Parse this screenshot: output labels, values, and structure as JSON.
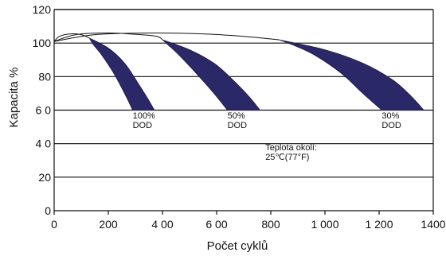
{
  "chart_data": {
    "type": "area",
    "xlabel": "Počet cyklů",
    "ylabel": "Kapacita  %",
    "xlim": [
      0,
      1400
    ],
    "ylim": [
      0,
      120
    ],
    "x_ticks": [
      0,
      200,
      400,
      600,
      800,
      1000,
      1200,
      1400
    ],
    "x_tick_labels": [
      "0",
      "200",
      "4 00",
      "6 00",
      "800",
      "1 000",
      "1 200",
      "1400"
    ],
    "y_ticks": [
      0,
      20,
      40,
      60,
      80,
      100,
      120
    ],
    "y_tick_labels": [
      "0",
      "20",
      "4 0",
      "6 0",
      "80",
      "100",
      "120"
    ],
    "grid": "horizontal",
    "fill_color": "#2b2868",
    "line_color": "#111111",
    "series": [
      {
        "label_lines": [
          "100%",
          "DOD"
        ],
        "label_x": 290,
        "label_y": 55,
        "curve": [
          [
            0,
            101
          ],
          [
            20,
            104
          ],
          [
            60,
            105.5
          ],
          [
            100,
            105
          ],
          [
            130,
            103
          ]
        ],
        "band_upper": [
          [
            130,
            103
          ],
          [
            200,
            97
          ],
          [
            260,
            88
          ],
          [
            310,
            76
          ],
          [
            345,
            67
          ],
          [
            370,
            60
          ]
        ],
        "band_lower": [
          [
            290,
            60
          ],
          [
            260,
            70
          ],
          [
            220,
            82
          ],
          [
            175,
            93
          ],
          [
            145,
            99
          ],
          [
            130,
            103
          ]
        ],
        "end_range": [
          290,
          370
        ]
      },
      {
        "label_lines": [
          "50%",
          "DOD"
        ],
        "label_x": 640,
        "label_y": 55,
        "curve": [
          [
            0,
            101
          ],
          [
            80,
            105
          ],
          [
            200,
            106
          ],
          [
            320,
            105
          ],
          [
            380,
            104
          ],
          [
            400,
            102
          ]
        ],
        "band_upper": [
          [
            400,
            102
          ],
          [
            500,
            96
          ],
          [
            590,
            88
          ],
          [
            660,
            78
          ],
          [
            720,
            68
          ],
          [
            760,
            60
          ]
        ],
        "band_lower": [
          [
            640,
            60
          ],
          [
            590,
            70
          ],
          [
            530,
            81
          ],
          [
            460,
            93
          ],
          [
            420,
            99
          ],
          [
            400,
            102
          ]
        ],
        "end_range": [
          640,
          760
        ]
      },
      {
        "label_lines": [
          "30%",
          "DOD"
        ],
        "label_x": 1210,
        "label_y": 55,
        "curve": [
          [
            0,
            101
          ],
          [
            150,
            105
          ],
          [
            350,
            106
          ],
          [
            550,
            105.5
          ],
          [
            700,
            104
          ],
          [
            830,
            102
          ]
        ],
        "band_upper": [
          [
            830,
            102
          ],
          [
            1000,
            96
          ],
          [
            1140,
            88
          ],
          [
            1250,
            78
          ],
          [
            1320,
            68
          ],
          [
            1365,
            60
          ]
        ],
        "band_lower": [
          [
            1210,
            60
          ],
          [
            1140,
            70
          ],
          [
            1060,
            82
          ],
          [
            960,
            93
          ],
          [
            880,
            99
          ],
          [
            830,
            102
          ]
        ],
        "end_range": [
          1210,
          1365
        ]
      }
    ],
    "annotation_lines": [
      "Teplota okolí:",
      "25℃(77°F)"
    ],
    "annotation_x": 780,
    "annotation_y": 36
  }
}
